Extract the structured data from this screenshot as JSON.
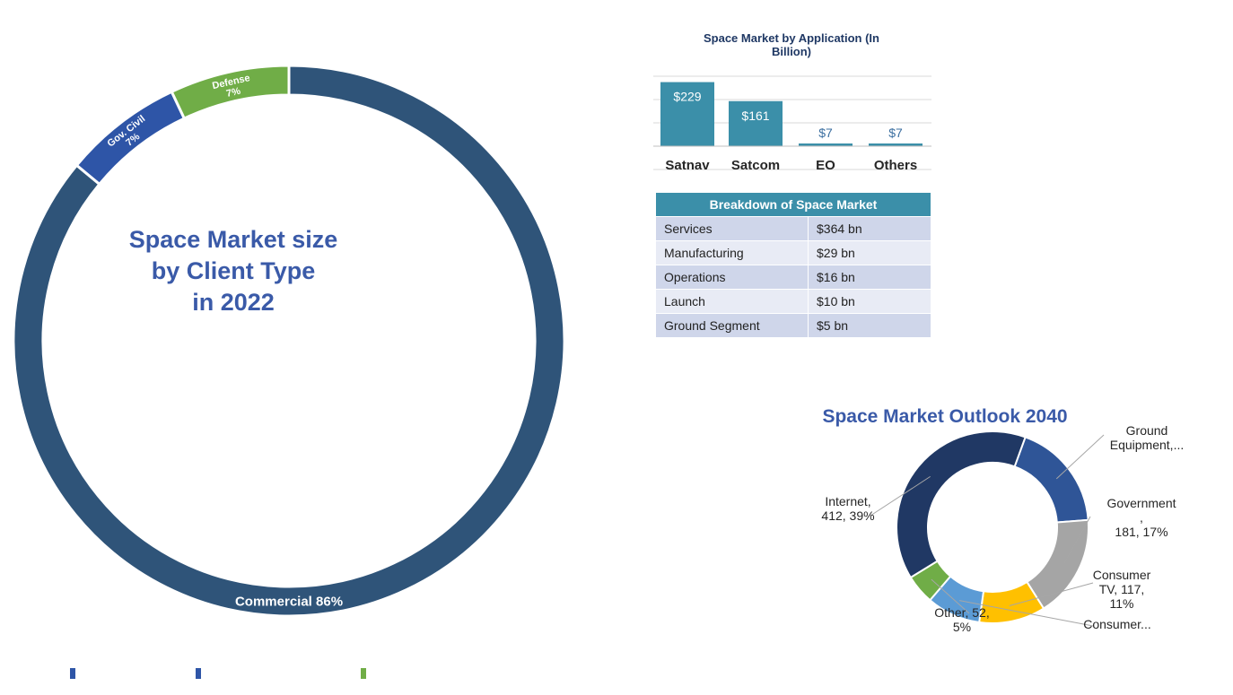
{
  "client_type_chart": {
    "title_lines": [
      "Space Market size",
      "by Client Type",
      "in 2022"
    ]
  },
  "breakdown_table": {
    "header": "Breakdown of Space Market",
    "rows": [
      {
        "label": "Services",
        "value": "$364 bn"
      },
      {
        "label": "Manufacturing",
        "value": "$29 bn"
      },
      {
        "label": "Operations",
        "value": "$16 bn"
      },
      {
        "label": "Launch",
        "value": "$10 bn"
      },
      {
        "label": "Ground Segment",
        "value": "$5 bn"
      }
    ]
  },
  "colors": {
    "commercial": "#2f5479",
    "gov_civil": "#2e55a7",
    "defense": "#70ad47",
    "bar": "#3b8fa9",
    "title_blue": "#3a5aa8",
    "internet": "#203864",
    "ground_equipment": "#2f5597",
    "government": "#a5a5a5",
    "consumer_tv": "#ffc000",
    "consumer_other": "#5b9bd5",
    "other": "#70ad47"
  },
  "chart_data": [
    {
      "type": "pie",
      "variant": "donut",
      "labels": [
        "Commercial",
        "Gov. Civil",
        "Defense"
      ],
      "label_texts": [
        "Commercial 86%",
        "Gov. Civil",
        "Defense"
      ],
      "percent_texts": [
        "",
        "7%",
        "7%"
      ],
      "values": [
        86,
        7,
        7
      ]
    },
    {
      "type": "bar",
      "title": "Space Market by Application (In Billion)",
      "title_lines": [
        "Space Market by Application (In",
        "Billion)"
      ],
      "categories": [
        "Satnav",
        "Satcom",
        "EO",
        "Others"
      ],
      "values": [
        229,
        161,
        7,
        7
      ],
      "data_labels": [
        "$229",
        "$161",
        "$7",
        "$7"
      ],
      "ylim": [
        0,
        250
      ],
      "grid": true
    },
    {
      "type": "pie",
      "variant": "donut",
      "title": "Space Market Outlook 2040",
      "labels": [
        "Ground Equipment",
        "Government",
        "Consumer TV",
        "Consumer",
        "Other",
        "Internet"
      ],
      "values": [
        191,
        181,
        117,
        95,
        52,
        412
      ],
      "label_lines": [
        [
          "Ground",
          "Equipment,..."
        ],
        [
          "Government",
          ",",
          "181, 17%"
        ],
        [
          "Consumer",
          "TV, 117,",
          "11%"
        ],
        [
          "Consumer..."
        ],
        [
          "Other, 52,",
          "5%"
        ],
        [
          "Internet,",
          "412, 39%"
        ]
      ]
    }
  ]
}
